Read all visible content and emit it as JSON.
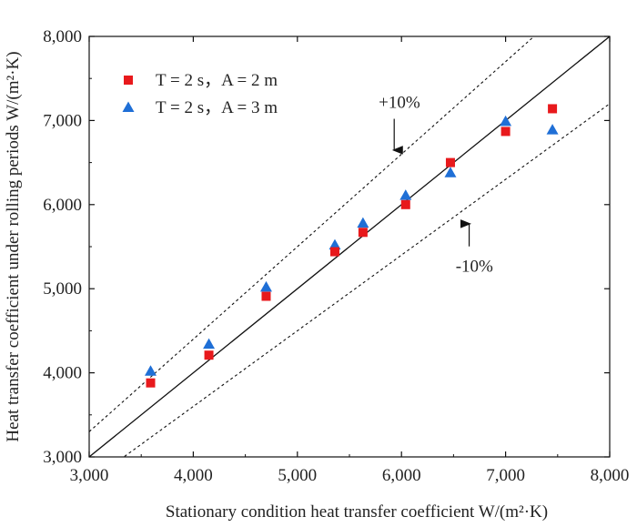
{
  "chart_data": {
    "type": "scatter",
    "xlabel": "Stationary condition heat transfer coefficient W/(m²·K)",
    "ylabel": "Heat transfer coefficient under rolling periods W/(m²·K)",
    "xlim": [
      3000,
      8000
    ],
    "ylim": [
      3000,
      8000
    ],
    "xticks": [
      3000,
      4000,
      5000,
      6000,
      7000,
      8000
    ],
    "yticks": [
      3000,
      4000,
      5000,
      6000,
      7000,
      8000
    ],
    "xtick_labels": [
      "3,000",
      "4,000",
      "5,000",
      "6,000",
      "7,000",
      "8,000"
    ],
    "ytick_labels": [
      "3,000",
      "4,000",
      "5,000",
      "6,000",
      "7,000",
      "8,000"
    ],
    "grid": false,
    "legend_position": "top-left",
    "series": [
      {
        "name": "T = 2 s，A = 2 m",
        "marker": "square",
        "color": "#e8191c",
        "x": [
          3590,
          4150,
          4700,
          5360,
          5630,
          6040,
          6470,
          7000,
          7450
        ],
        "y": [
          3880,
          4210,
          4910,
          5440,
          5670,
          6000,
          6500,
          6870,
          7140
        ]
      },
      {
        "name": "T = 2 s，A = 3 m",
        "marker": "triangle",
        "color": "#1f6fd6",
        "x": [
          3590,
          4150,
          4700,
          5360,
          5630,
          6040,
          6470,
          7000,
          7450
        ],
        "y": [
          4020,
          4340,
          5020,
          5520,
          5780,
          6110,
          6380,
          6990,
          6890
        ]
      }
    ],
    "reference_lines": [
      {
        "kind": "y=x",
        "factor": 1.0,
        "style": "solid"
      },
      {
        "kind": "+10%",
        "factor": 1.1,
        "style": "dashed"
      },
      {
        "kind": "-10%",
        "factor": 0.9,
        "style": "dashed"
      }
    ],
    "annotations": [
      {
        "text": "+10%",
        "x": 5980,
        "y": 7150,
        "arrow_to": [
          5930,
          6540
        ]
      },
      {
        "text": "-10%",
        "x": 6700,
        "y": 5200,
        "arrow_to": [
          6650,
          5880
        ]
      }
    ]
  }
}
